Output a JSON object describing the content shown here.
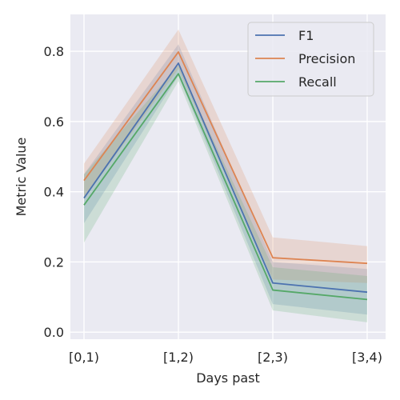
{
  "chart_data": {
    "type": "line",
    "title": "",
    "xlabel": "Days past",
    "ylabel": "Metric Value",
    "categories": [
      "[0,1)",
      "[1,2)",
      "[2,3)",
      "[3,4)"
    ],
    "ylim": [
      -0.02,
      0.905
    ],
    "yticks": [
      "0.0",
      "0.2",
      "0.4",
      "0.6",
      "0.8"
    ],
    "grid": true,
    "legend_position": "top-right",
    "series": [
      {
        "name": "F1",
        "color": "#4c72b0",
        "values": [
          0.382,
          0.766,
          0.14,
          0.114
        ],
        "lower": [
          0.31,
          0.73,
          0.08,
          0.05
        ],
        "upper": [
          0.45,
          0.82,
          0.2,
          0.18
        ]
      },
      {
        "name": "Precision",
        "color": "#dd8452",
        "values": [
          0.432,
          0.798,
          0.212,
          0.196
        ],
        "lower": [
          0.38,
          0.75,
          0.15,
          0.14
        ],
        "upper": [
          0.48,
          0.862,
          0.27,
          0.245
        ]
      },
      {
        "name": "Recall",
        "color": "#55a868",
        "values": [
          0.362,
          0.736,
          0.12,
          0.093
        ],
        "lower": [
          0.255,
          0.715,
          0.062,
          0.028
        ],
        "upper": [
          0.45,
          0.76,
          0.185,
          0.16
        ]
      }
    ]
  }
}
